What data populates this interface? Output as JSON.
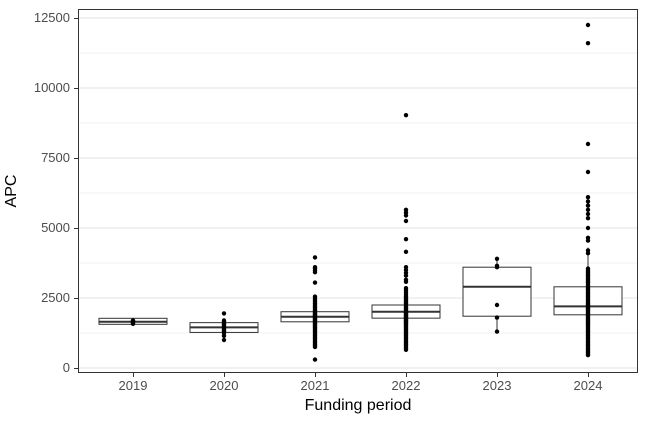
{
  "figure": {
    "background": "#ffffff"
  },
  "chart_data": {
    "type": "boxplot",
    "title": "",
    "xlabel": "Funding period",
    "ylabel": "APC",
    "categories": [
      "2019",
      "2020",
      "2021",
      "2022",
      "2023",
      "2024"
    ],
    "ylim": [
      0,
      12500
    ],
    "yticks": [
      0,
      2500,
      5000,
      7500,
      10000,
      12500
    ],
    "ytick_labels": [
      "0",
      "2500",
      "5000",
      "7500",
      "10000",
      "12500"
    ],
    "yticks_minor": [
      1250,
      3750,
      6250,
      8750,
      11250
    ],
    "grid": "major+minor",
    "legend_position": "none",
    "colors": {
      "panel_border": "#333333",
      "grid_major": "#e3e3e3",
      "grid_minor": "#f1f1f1",
      "box_border": "#333333",
      "box_fill": "#ffffff",
      "median": "#333333",
      "point": "#000000",
      "axis_text": "#4d4d4d",
      "axis_title": "#000000"
    },
    "boxes": [
      {
        "category": "2019",
        "whisker_low": 1560,
        "q1": 1560,
        "median": 1650,
        "q3": 1775,
        "whisker_high": 1775,
        "points": [
          1580,
          1620,
          1650,
          1680,
          1700
        ]
      },
      {
        "category": "2020",
        "whisker_low": 1150,
        "q1": 1270,
        "median": 1450,
        "q3": 1620,
        "whisker_high": 1700,
        "points": [
          1950,
          1700,
          1650,
          1600,
          1550,
          1500,
          1460,
          1420,
          1380,
          1340,
          1300,
          1250,
          1150,
          1000
        ]
      },
      {
        "category": "2021",
        "whisker_low": 1150,
        "q1": 1650,
        "median": 1830,
        "q3": 2010,
        "whisker_high": 2500,
        "points": [
          3950,
          3600,
          3550,
          3480,
          3420,
          3050,
          2550,
          2480,
          2420,
          2360,
          2300,
          2250,
          2200,
          2150,
          2100,
          2060,
          2020,
          1980,
          1950,
          1920,
          1890,
          1860,
          1830,
          1800,
          1770,
          1740,
          1710,
          1680,
          1650,
          1620,
          1590,
          1560,
          1520,
          1480,
          1440,
          1400,
          1350,
          1300,
          1250,
          1200,
          1150,
          1100,
          1050,
          1000,
          950,
          900,
          850,
          800,
          750,
          300
        ]
      },
      {
        "category": "2022",
        "whisker_low": 1100,
        "q1": 1780,
        "median": 2010,
        "q3": 2250,
        "whisker_high": 2900,
        "points": [
          9030,
          5650,
          5550,
          5450,
          5250,
          4600,
          4150,
          3600,
          3500,
          3400,
          3300,
          3150,
          3080,
          2850,
          2780,
          2700,
          2620,
          2550,
          2500,
          2450,
          2400,
          2350,
          2300,
          2250,
          2200,
          2160,
          2120,
          2080,
          2040,
          2010,
          1980,
          1950,
          1920,
          1890,
          1860,
          1830,
          1800,
          1770,
          1740,
          1710,
          1680,
          1650,
          1620,
          1590,
          1560,
          1520,
          1480,
          1440,
          1400,
          1360,
          1320,
          1280,
          1240,
          1200,
          1150,
          1100,
          1050,
          1000,
          950,
          900,
          850,
          800,
          750,
          700,
          650
        ]
      },
      {
        "category": "2023",
        "whisker_low": 1300,
        "q1": 1850,
        "median": 2900,
        "q3": 3600,
        "whisker_high": 3900,
        "points": [
          3900,
          3650,
          3600,
          2250,
          1800,
          1300
        ]
      },
      {
        "category": "2024",
        "whisker_low": 500,
        "q1": 1900,
        "median": 2200,
        "q3": 2900,
        "whisker_high": 4300,
        "points": [
          12250,
          11600,
          8000,
          7000,
          6100,
          5950,
          5800,
          5650,
          5500,
          5350,
          5000,
          4650,
          4550,
          4200,
          4100,
          3550,
          3500,
          3450,
          3400,
          3350,
          3300,
          3250,
          3200,
          3150,
          3100,
          3050,
          3000,
          2950,
          2900,
          2850,
          2800,
          2750,
          2700,
          2650,
          2600,
          2550,
          2500,
          2450,
          2400,
          2350,
          2300,
          2260,
          2220,
          2180,
          2140,
          2100,
          2060,
          2020,
          1980,
          1940,
          1900,
          1860,
          1820,
          1780,
          1740,
          1700,
          1660,
          1620,
          1580,
          1540,
          1500,
          1450,
          1400,
          1350,
          1300,
          1250,
          1200,
          1150,
          1100,
          1050,
          1000,
          950,
          900,
          850,
          800,
          750,
          700,
          650,
          600,
          550,
          500,
          460
        ]
      }
    ]
  }
}
